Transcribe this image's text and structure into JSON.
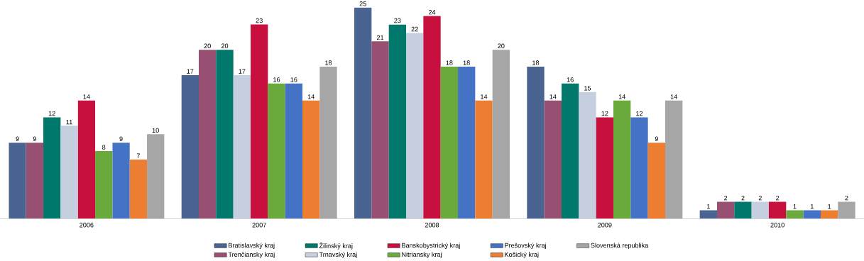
{
  "chart_data": {
    "type": "bar",
    "categories": [
      "2006",
      "2007",
      "2008",
      "2009",
      "2010"
    ],
    "data_labels": true,
    "legend": "bottom",
    "series": [
      {
        "name": "Bratislavský kraj",
        "color": "#4a6491",
        "values": [
          9,
          17,
          25,
          18,
          1
        ]
      },
      {
        "name": "Trenčiansky kraj",
        "color": "#974f72",
        "values": [
          9,
          20,
          21,
          14,
          2
        ]
      },
      {
        "name": "Žilinský kraj",
        "color": "#00786b",
        "values": [
          12,
          20,
          23,
          16,
          2
        ]
      },
      {
        "name": "Trnavský kraj",
        "color": "#c5cfe0",
        "values": [
          11,
          17,
          22,
          15,
          2
        ]
      },
      {
        "name": "Banskobystrický kraj",
        "color": "#c8103e",
        "values": [
          14,
          23,
          24,
          12,
          2
        ]
      },
      {
        "name": "Nitriansky kraj",
        "color": "#6aaa3c",
        "values": [
          8,
          16,
          18,
          14,
          1
        ]
      },
      {
        "name": "Prešovský kraj",
        "color": "#4472c4",
        "values": [
          9,
          16,
          18,
          12,
          1
        ]
      },
      {
        "name": "Košický kraj",
        "color": "#ed7d31",
        "values": [
          7,
          14,
          14,
          9,
          1
        ]
      },
      {
        "name": "Slovenská republika",
        "color": "#a6a6a6",
        "values": [
          10,
          18,
          20,
          14,
          2
        ]
      }
    ]
  }
}
